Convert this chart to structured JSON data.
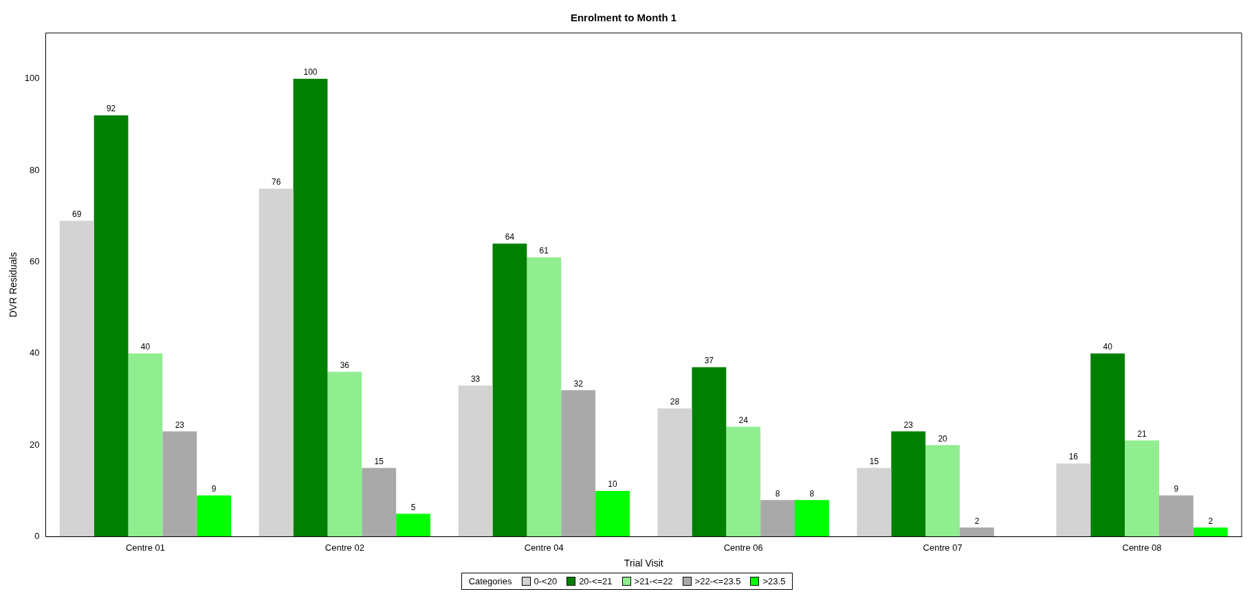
{
  "chart_data": {
    "type": "bar",
    "title": "Enrolment to Month 1",
    "xlabel": "Trial Visit",
    "ylabel": "DVR Residuals",
    "legend_title": "Categories",
    "categories": [
      "Centre 01",
      "Centre 02",
      "Centre 04",
      "Centre 06",
      "Centre 07",
      "Centre 08"
    ],
    "series": [
      {
        "name": "0-<20",
        "color": "#d3d3d3",
        "values": [
          69,
          76,
          33,
          28,
          15,
          16
        ]
      },
      {
        "name": "20-<=21",
        "color": "#008000",
        "values": [
          92,
          100,
          64,
          37,
          23,
          40
        ]
      },
      {
        "name": ">21-<=22",
        "color": "#90ee90",
        "values": [
          40,
          36,
          61,
          24,
          20,
          21
        ]
      },
      {
        "name": ">22-<=23.5",
        "color": "#a9a9a9",
        "values": [
          23,
          15,
          32,
          8,
          2,
          9
        ]
      },
      {
        "name": ">23.5",
        "color": "#00ff00",
        "values": [
          9,
          5,
          10,
          8,
          null,
          2
        ]
      }
    ],
    "ylim": [
      0,
      110
    ],
    "yticks": [
      0,
      20,
      40,
      60,
      80,
      100
    ],
    "grid": false,
    "legend": "bottom",
    "data_labels": true
  }
}
